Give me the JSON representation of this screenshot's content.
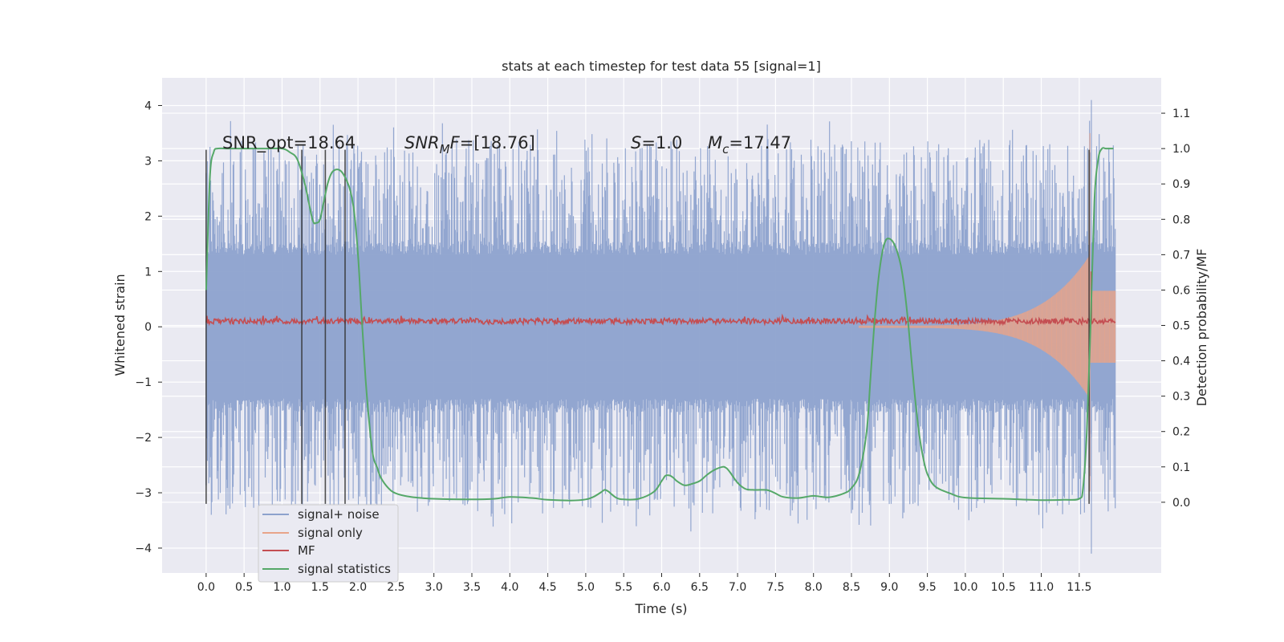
{
  "chart_data": {
    "type": "line",
    "title": "stats at each timestep for test data 55 [signal=1]",
    "xlabel": "Time (s)",
    "ylabel": "Whitened strain",
    "ylabel_right": "Detection probability/MF",
    "xlim": [
      -0.58,
      12.58
    ],
    "ylim": [
      -4.45,
      4.5
    ],
    "ylim_right": [
      -0.2,
      1.2
    ],
    "grid": true,
    "x_ticks": [
      "0.0",
      "0.5",
      "1.0",
      "1.5",
      "2.0",
      "2.5",
      "3.0",
      "3.5",
      "4.0",
      "4.5",
      "5.0",
      "5.5",
      "6.0",
      "6.5",
      "7.0",
      "7.5",
      "8.0",
      "8.5",
      "9.0",
      "9.5",
      "10.0",
      "10.5",
      "11.0",
      "11.5"
    ],
    "y_ticks": [
      "4",
      "3",
      "2",
      "1",
      "0",
      "−1",
      "−2",
      "−3",
      "−4"
    ],
    "y_ticks_right": [
      "1.1",
      "1.0",
      "0.9",
      "0.8",
      "0.7",
      "0.6",
      "0.5",
      "0.4",
      "0.3",
      "0.2",
      "0.1",
      "0.0"
    ],
    "annotations": {
      "snr_opt": "SNR_opt=18.64",
      "snr_mf_sym": "SNR",
      "snr_mf_sub": "M",
      "snr_mf_rest": "F",
      "snr_mf_val": "=[18.76]",
      "s_sym": "S",
      "s_val": "=1.0",
      "mc_sym": "M",
      "mc_sub": "c",
      "mc_val": "=17.47"
    },
    "vlines_x": [
      0.0,
      1.26,
      1.57,
      1.83,
      11.63
    ],
    "legend": {
      "placement": "lower-left",
      "entries": [
        "signal+ noise",
        "signal only",
        "MF",
        "signal statistics"
      ]
    },
    "colors": {
      "noise": "#8da2cd",
      "signal": "#e8a48a",
      "mf": "#c44e52",
      "stats": "#55a868",
      "vline": "#333333",
      "bg": "#eaeaf2"
    },
    "series": [
      {
        "name": "signal statistics",
        "axis": "right",
        "x": [
          0.0,
          0.05,
          0.1,
          0.15,
          0.25,
          0.4,
          0.6,
          0.8,
          1.0,
          1.1,
          1.2,
          1.3,
          1.4,
          1.45,
          1.5,
          1.55,
          1.6,
          1.65,
          1.7,
          1.75,
          1.8,
          1.85,
          1.9,
          1.95,
          2.0,
          2.05,
          2.1,
          2.15,
          2.2,
          2.25,
          2.3,
          2.4,
          2.5,
          2.7,
          3.0,
          3.5,
          3.8,
          4.0,
          4.3,
          4.5,
          4.8,
          5.0,
          5.1,
          5.2,
          5.25,
          5.3,
          5.4,
          5.5,
          5.7,
          5.9,
          6.0,
          6.05,
          6.1,
          6.15,
          6.2,
          6.3,
          6.4,
          6.5,
          6.6,
          6.7,
          6.8,
          6.85,
          6.9,
          7.0,
          7.1,
          7.2,
          7.3,
          7.4,
          7.5,
          7.6,
          7.8,
          8.0,
          8.2,
          8.4,
          8.5,
          8.6,
          8.7,
          8.75,
          8.8,
          8.85,
          8.9,
          8.95,
          9.0,
          9.05,
          9.1,
          9.15,
          9.2,
          9.25,
          9.3,
          9.35,
          9.4,
          9.45,
          9.5,
          9.6,
          9.8,
          10.0,
          10.5,
          11.0,
          11.3,
          11.5,
          11.55,
          11.6,
          11.65,
          11.7,
          11.75,
          11.8,
          11.85,
          11.95
        ],
        "values": [
          0.6,
          0.92,
          0.99,
          1.0,
          1.0,
          1.0,
          1.0,
          1.0,
          1.0,
          0.99,
          0.97,
          0.9,
          0.8,
          0.79,
          0.8,
          0.85,
          0.9,
          0.93,
          0.94,
          0.94,
          0.93,
          0.91,
          0.88,
          0.82,
          0.7,
          0.52,
          0.35,
          0.22,
          0.13,
          0.1,
          0.07,
          0.04,
          0.025,
          0.015,
          0.01,
          0.008,
          0.01,
          0.015,
          0.012,
          0.007,
          0.005,
          0.008,
          0.015,
          0.028,
          0.035,
          0.03,
          0.013,
          0.008,
          0.01,
          0.03,
          0.06,
          0.075,
          0.076,
          0.07,
          0.06,
          0.048,
          0.052,
          0.06,
          0.078,
          0.092,
          0.1,
          0.097,
          0.085,
          0.055,
          0.038,
          0.035,
          0.035,
          0.034,
          0.025,
          0.015,
          0.012,
          0.018,
          0.014,
          0.025,
          0.04,
          0.08,
          0.2,
          0.35,
          0.5,
          0.62,
          0.7,
          0.74,
          0.745,
          0.735,
          0.71,
          0.67,
          0.6,
          0.5,
          0.38,
          0.27,
          0.18,
          0.12,
          0.08,
          0.045,
          0.025,
          0.013,
          0.01,
          0.006,
          0.007,
          0.01,
          0.04,
          0.2,
          0.5,
          0.85,
          0.97,
          1.0,
          1.0,
          1.0
        ]
      },
      {
        "name": "MF",
        "axis": "left",
        "x_range": [
          0.0,
          11.98
        ],
        "baseline": 0.1,
        "noise_amplitude": 0.05,
        "spike_x": 11.66,
        "spike_y": 1.0
      },
      {
        "name": "signal only",
        "axis": "left",
        "x_range": [
          8.6,
          11.98
        ],
        "envelope_start": 0.02,
        "envelope_end": 1.3,
        "peak_x": 11.64,
        "peak_y": 3.5
      },
      {
        "name": "signal+ noise",
        "axis": "left",
        "x_range": [
          0.0,
          11.98
        ],
        "core_band": 1.3,
        "spike_range": [
          2.2,
          3.4
        ],
        "max": 4.1,
        "min": -4.1,
        "peak_x": 11.66
      }
    ]
  }
}
